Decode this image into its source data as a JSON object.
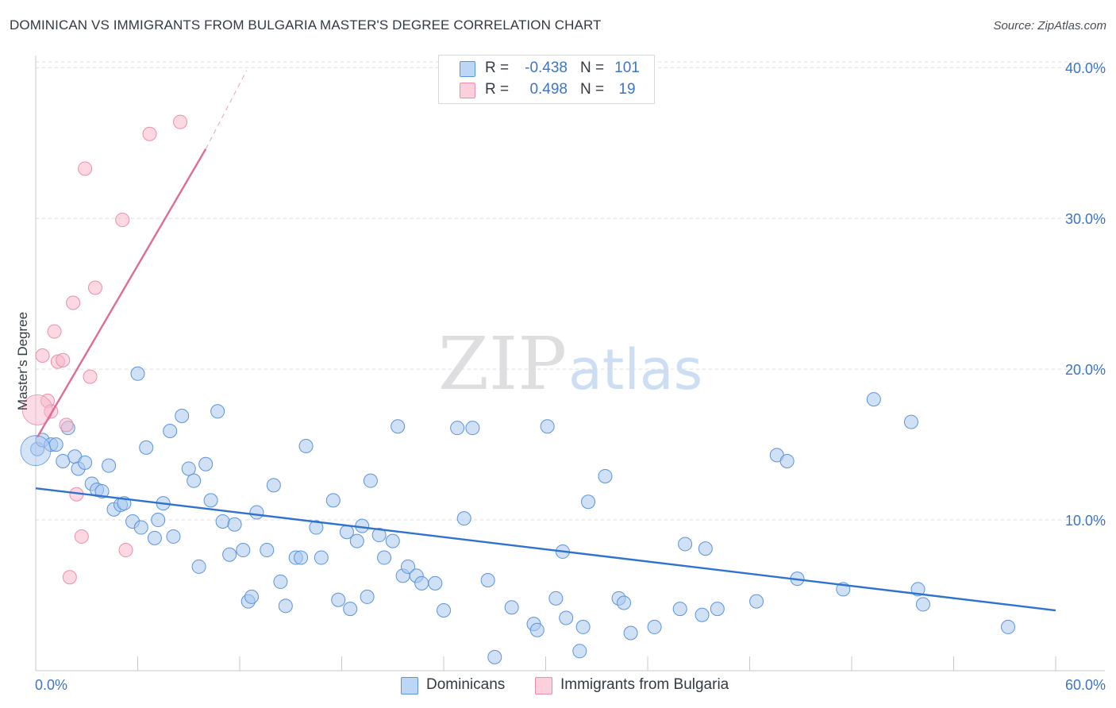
{
  "title": "DOMINICAN VS IMMIGRANTS FROM BULGARIA MASTER'S DEGREE CORRELATION CHART",
  "source": "Source: ZipAtlas.com",
  "watermark": {
    "zip": "ZIP",
    "atlas": "atlas"
  },
  "legend": {
    "rows": [
      {
        "r_label": "R =",
        "r_value": "-0.438",
        "n_label": "N =",
        "n_value": "101",
        "color": "#a9c8ef"
      },
      {
        "r_label": "R =",
        "r_value": "0.498",
        "n_label": "N =",
        "n_value": "19",
        "color": "#f7b8cb"
      }
    ]
  },
  "bottom_legend": [
    {
      "label": "Dominicans",
      "color": "#a9c8ef"
    },
    {
      "label": "Immigrants from Bulgaria",
      "color": "#f7b8cb"
    }
  ],
  "chart_data": {
    "type": "scatter",
    "title": "DOMINICAN VS IMMIGRANTS FROM BULGARIA MASTER'S DEGREE CORRELATION CHART",
    "xlabel": "",
    "ylabel": "Master's Degree",
    "xlim": [
      0,
      60
    ],
    "ylim": [
      0,
      40.8
    ],
    "x_tick_labels": [
      {
        "value": 0,
        "label": "0.0%"
      },
      {
        "value": 60,
        "label": "60.0%"
      }
    ],
    "y_tick_labels": [
      {
        "value": 10,
        "label": "10.0%"
      },
      {
        "value": 20,
        "label": "20.0%"
      },
      {
        "value": 30,
        "label": "30.0%"
      },
      {
        "value": 40,
        "label": "40.0%"
      }
    ],
    "x_minor_ticks": [
      6,
      12,
      18,
      24,
      30,
      36,
      42,
      48,
      54,
      60
    ],
    "grid": true,
    "series": [
      {
        "name": "Dominicans",
        "color": "#a9c8ef",
        "stroke": "#5b93dd",
        "trend": {
          "x0": 0,
          "y0": 12.1,
          "x1": 60,
          "y1": 4.0,
          "color": "#2f72d0"
        },
        "points": [
          [
            0.1,
            14.7
          ],
          [
            0.4,
            15.3
          ],
          [
            0.9,
            15.0
          ],
          [
            1.2,
            15.0
          ],
          [
            1.9,
            16.1
          ],
          [
            1.6,
            13.9
          ],
          [
            2.3,
            14.2
          ],
          [
            2.5,
            13.4
          ],
          [
            2.9,
            13.8
          ],
          [
            3.3,
            12.4
          ],
          [
            3.6,
            12.0
          ],
          [
            3.9,
            11.9
          ],
          [
            4.3,
            13.6
          ],
          [
            4.6,
            10.7
          ],
          [
            5.0,
            11.0
          ],
          [
            5.2,
            11.1
          ],
          [
            5.7,
            9.9
          ],
          [
            6.2,
            9.5
          ],
          [
            6.0,
            19.7
          ],
          [
            6.5,
            14.8
          ],
          [
            7.0,
            8.8
          ],
          [
            7.2,
            10.0
          ],
          [
            7.5,
            11.1
          ],
          [
            7.9,
            15.9
          ],
          [
            8.1,
            8.9
          ],
          [
            8.6,
            16.9
          ],
          [
            9.0,
            13.4
          ],
          [
            9.3,
            12.6
          ],
          [
            9.6,
            6.9
          ],
          [
            10.0,
            13.7
          ],
          [
            10.3,
            11.3
          ],
          [
            10.7,
            17.2
          ],
          [
            11.0,
            9.9
          ],
          [
            11.4,
            7.7
          ],
          [
            11.7,
            9.7
          ],
          [
            12.2,
            8.0
          ],
          [
            12.5,
            4.6
          ],
          [
            12.7,
            4.9
          ],
          [
            13.0,
            10.5
          ],
          [
            13.6,
            8.0
          ],
          [
            14.0,
            12.3
          ],
          [
            14.4,
            5.9
          ],
          [
            14.7,
            4.3
          ],
          [
            15.3,
            7.5
          ],
          [
            15.6,
            7.5
          ],
          [
            15.9,
            14.9
          ],
          [
            16.5,
            9.5
          ],
          [
            16.8,
            7.5
          ],
          [
            17.5,
            11.3
          ],
          [
            17.8,
            4.7
          ],
          [
            18.3,
            9.2
          ],
          [
            18.5,
            4.1
          ],
          [
            18.9,
            8.6
          ],
          [
            19.2,
            9.6
          ],
          [
            19.5,
            4.9
          ],
          [
            19.7,
            12.6
          ],
          [
            20.2,
            9.0
          ],
          [
            20.5,
            7.5
          ],
          [
            21.0,
            8.6
          ],
          [
            21.3,
            16.2
          ],
          [
            21.6,
            6.3
          ],
          [
            21.9,
            6.9
          ],
          [
            22.4,
            6.3
          ],
          [
            22.7,
            5.8
          ],
          [
            23.5,
            5.8
          ],
          [
            24.0,
            4.0
          ],
          [
            24.8,
            16.1
          ],
          [
            25.7,
            16.1
          ],
          [
            25.2,
            10.1
          ],
          [
            26.6,
            6.0
          ],
          [
            27.0,
            0.9
          ],
          [
            28.0,
            4.2
          ],
          [
            29.3,
            3.1
          ],
          [
            29.5,
            2.7
          ],
          [
            30.1,
            16.2
          ],
          [
            30.6,
            4.8
          ],
          [
            31.0,
            7.9
          ],
          [
            31.2,
            3.5
          ],
          [
            32.0,
            1.3
          ],
          [
            32.2,
            2.9
          ],
          [
            32.5,
            11.2
          ],
          [
            33.5,
            12.9
          ],
          [
            34.3,
            4.8
          ],
          [
            34.6,
            4.5
          ],
          [
            35.0,
            2.5
          ],
          [
            36.4,
            2.9
          ],
          [
            37.9,
            4.1
          ],
          [
            38.2,
            8.4
          ],
          [
            39.4,
            8.1
          ],
          [
            39.2,
            3.7
          ],
          [
            40.1,
            4.1
          ],
          [
            42.4,
            4.6
          ],
          [
            43.6,
            14.3
          ],
          [
            44.2,
            13.9
          ],
          [
            44.8,
            6.1
          ],
          [
            47.5,
            5.4
          ],
          [
            49.3,
            18.0
          ],
          [
            51.5,
            16.5
          ],
          [
            51.9,
            5.4
          ],
          [
            52.2,
            4.4
          ],
          [
            57.2,
            2.9
          ]
        ],
        "large_points": [
          [
            0.0,
            14.6
          ]
        ]
      },
      {
        "name": "Immigrants from Bulgaria",
        "color": "#f7b8cb",
        "stroke": "#ea8fab",
        "trend": {
          "x0": 0.1,
          "y0": 15.5,
          "x1": 10.0,
          "y1": 34.6,
          "color": "#e06b95",
          "dashed_to": {
            "x": 12.4,
            "y": 39.8
          }
        },
        "points": [
          [
            0.4,
            20.9
          ],
          [
            0.7,
            17.9
          ],
          [
            0.9,
            17.2
          ],
          [
            1.1,
            22.5
          ],
          [
            1.3,
            20.5
          ],
          [
            1.6,
            20.6
          ],
          [
            1.8,
            16.3
          ],
          [
            2.2,
            24.4
          ],
          [
            2.4,
            11.7
          ],
          [
            2.7,
            8.9
          ],
          [
            2.9,
            33.3
          ],
          [
            3.2,
            19.5
          ],
          [
            3.5,
            25.4
          ],
          [
            5.1,
            29.9
          ],
          [
            5.3,
            8.0
          ],
          [
            6.7,
            35.6
          ],
          [
            8.5,
            36.4
          ],
          [
            2.0,
            6.2
          ]
        ],
        "large_points": [
          [
            0.1,
            17.3
          ]
        ]
      }
    ]
  }
}
